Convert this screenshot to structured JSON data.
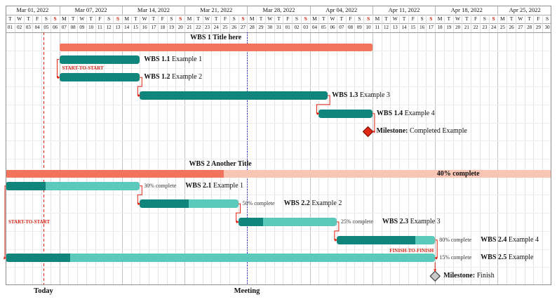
{
  "colors": {
    "salmon": "#F2745C",
    "salmon_light": "#F9C5B5",
    "teal": "#0F857B",
    "teal_light": "#5CC9BD",
    "red": "#DE2110",
    "blue": "#2222CC",
    "milestone_red": "#E02713",
    "milestone_red_border": "#7E0E00",
    "milestone_gray": "#C9C9C9",
    "milestone_gray_border": "#3F3F3F"
  },
  "calendar": {
    "weeks": [
      {
        "label": "Mar 01, 2022",
        "days": 6
      },
      {
        "label": "Mar 07, 2022",
        "days": 7
      },
      {
        "label": "Mar 14, 2022",
        "days": 7
      },
      {
        "label": "Mar 21, 2022",
        "days": 7
      },
      {
        "label": "Mar 28, 2022",
        "days": 7
      },
      {
        "label": "Apr 04, 2022",
        "days": 7
      },
      {
        "label": "Apr 11, 2022",
        "days": 7
      },
      {
        "label": "Apr 18, 2022",
        "days": 7
      },
      {
        "label": "Apr 25, 2022",
        "days": 6
      }
    ],
    "day_letters": [
      "T",
      "W",
      "T",
      "F",
      "S",
      "S",
      "M",
      "T",
      "W",
      "T",
      "F",
      "S",
      "S",
      "M",
      "T",
      "W",
      "T",
      "F",
      "S",
      "S",
      "M",
      "T",
      "W",
      "T",
      "F",
      "S",
      "S",
      "M",
      "T",
      "W",
      "T",
      "F",
      "S",
      "S",
      "M",
      "T",
      "W",
      "T",
      "F",
      "S",
      "S",
      "M",
      "T",
      "W",
      "T",
      "F",
      "S",
      "S",
      "M",
      "T",
      "W",
      "T",
      "F",
      "S",
      "S",
      "M",
      "T",
      "W",
      "T",
      "F",
      "S"
    ],
    "day_numbers": [
      "01",
      "02",
      "03",
      "04",
      "05",
      "06",
      "07",
      "08",
      "09",
      "10",
      "11",
      "12",
      "13",
      "14",
      "15",
      "16",
      "17",
      "18",
      "19",
      "20",
      "21",
      "22",
      "23",
      "24",
      "25",
      "26",
      "27",
      "28",
      "29",
      "30",
      "31",
      "01",
      "02",
      "03",
      "04",
      "05",
      "06",
      "07",
      "08",
      "09",
      "10",
      "11",
      "12",
      "13",
      "14",
      "15",
      "16",
      "17",
      "18",
      "19",
      "20",
      "21",
      "22",
      "23",
      "24",
      "25",
      "26",
      "27",
      "28",
      "29",
      "30"
    ],
    "sunday_indices": [
      5,
      12,
      19,
      26,
      33,
      40,
      47,
      54
    ]
  },
  "markers": {
    "today": {
      "label": "Today",
      "at_day": 4.25,
      "style": "dashed",
      "color": "#DE2110"
    },
    "meeting": {
      "label": "Meeting",
      "at_day": 27,
      "style": "dotted",
      "color": "#2222CC"
    }
  },
  "chart_data": {
    "type": "gantt",
    "timeline": {
      "start": "Mar 01, 2022",
      "end": "Apr 30, 2022",
      "days": 61
    },
    "rows": [
      {
        "kind": "group",
        "id": "g1",
        "bold": "WBS 1",
        "text": "Title here",
        "start": 6,
        "end": 41
      },
      {
        "kind": "task",
        "id": "1.1",
        "bold": "WBS 1.1",
        "text": "Example 1",
        "start": 6,
        "end": 15
      },
      {
        "kind": "task",
        "id": "1.2",
        "bold": "WBS 1.2",
        "text": "Example 2",
        "start": 6,
        "end": 15
      },
      {
        "kind": "task",
        "id": "1.3",
        "bold": "WBS 1.3",
        "text": "Example 3",
        "start": 15,
        "end": 36
      },
      {
        "kind": "task",
        "id": "1.4",
        "bold": "WBS 1.4",
        "text": "Example 4",
        "start": 35,
        "end": 41
      },
      {
        "kind": "milestone",
        "id": "ms1",
        "bold": "Milestone:",
        "text": "Completed Example",
        "at": 40.5,
        "variant": "completed"
      },
      {
        "kind": "spacer"
      },
      {
        "kind": "group",
        "id": "g2",
        "bold": "WBS 2",
        "text": "Another Title",
        "start": 0,
        "end": 61,
        "progress": 40,
        "progress_label": "40% complete",
        "label_at_day": 24,
        "progress_label_at_day": 48.2
      },
      {
        "kind": "task",
        "id": "2.1",
        "bold": "WBS 2.1",
        "text": "Example 1",
        "start": 0,
        "end": 15,
        "progress": 30,
        "progress_label": "30% complete"
      },
      {
        "kind": "task",
        "id": "2.2",
        "bold": "WBS 2.2",
        "text": "Example 2",
        "start": 15,
        "end": 26,
        "progress": 50,
        "progress_label": "50% complete"
      },
      {
        "kind": "task",
        "id": "2.3",
        "bold": "WBS 2.3",
        "text": "Example 3",
        "start": 26,
        "end": 37,
        "progress": 25,
        "progress_label": "25% complete"
      },
      {
        "kind": "task",
        "id": "2.4",
        "bold": "WBS 2.4",
        "text": "Example 4",
        "start": 37,
        "end": 48,
        "progress": 80,
        "progress_label": "80% complete"
      },
      {
        "kind": "task",
        "id": "2.5",
        "bold": "WBS 2.5",
        "text": "Example",
        "start": 0,
        "end": 48,
        "progress": 15,
        "progress_label": "15% complete"
      },
      {
        "kind": "milestone",
        "id": "ms2",
        "bold": "Milestone:",
        "text": "Finish",
        "at": 48,
        "variant": "finish"
      }
    ],
    "links": [
      {
        "from": "1.1",
        "to": "1.2",
        "type": "start-start",
        "label": "START-TO-START"
      },
      {
        "from": "1.2",
        "to": "1.3",
        "type": "end-start"
      },
      {
        "from": "1.3",
        "to": "1.4",
        "type": "end-start"
      },
      {
        "from": "1.4",
        "to": "ms1",
        "type": "end-milestone"
      },
      {
        "from": "2.1",
        "to": "2.2",
        "type": "end-start"
      },
      {
        "from": "2.2",
        "to": "2.3",
        "type": "end-start"
      },
      {
        "from": "2.3",
        "to": "2.4",
        "type": "end-start"
      },
      {
        "from": "2.1",
        "to": "2.5",
        "type": "start-start",
        "label": "START-TO-START"
      },
      {
        "from": "2.4",
        "to": "2.5",
        "type": "finish-finish",
        "label": "FINISH-TO-FINISH"
      },
      {
        "from": "2.5",
        "to": "ms2",
        "type": "end-milestone"
      }
    ]
  }
}
